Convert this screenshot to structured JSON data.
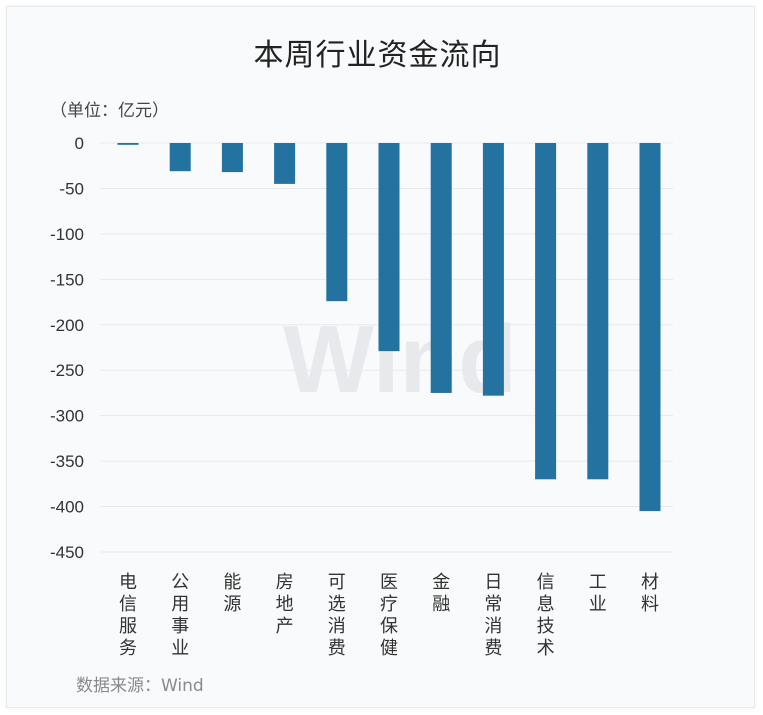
{
  "title": "本周行业资金流向",
  "unit_label": "（单位：亿元）",
  "source": "数据来源：Wind",
  "watermark": "Wind",
  "colors": {
    "bar": "#2472a0",
    "grid": "#e6e9ec",
    "axis_text": "#333333",
    "watermark": "#e7e9ec"
  },
  "chart_data": {
    "type": "bar",
    "categories": [
      "电信服务",
      "公用事业",
      "能源",
      "房地产",
      "可选消费",
      "医疗保健",
      "金融",
      "日常消费",
      "信息技术",
      "工业",
      "材料"
    ],
    "values": [
      -2,
      -31,
      -32,
      -45,
      -174,
      -229,
      -275,
      -278,
      -370,
      -370,
      -405
    ],
    "yticks": [
      0,
      -50,
      -100,
      -150,
      -200,
      -250,
      -300,
      -350,
      -400,
      -450
    ],
    "ylim": [
      -450,
      0
    ],
    "grid": true,
    "legend": "none"
  }
}
